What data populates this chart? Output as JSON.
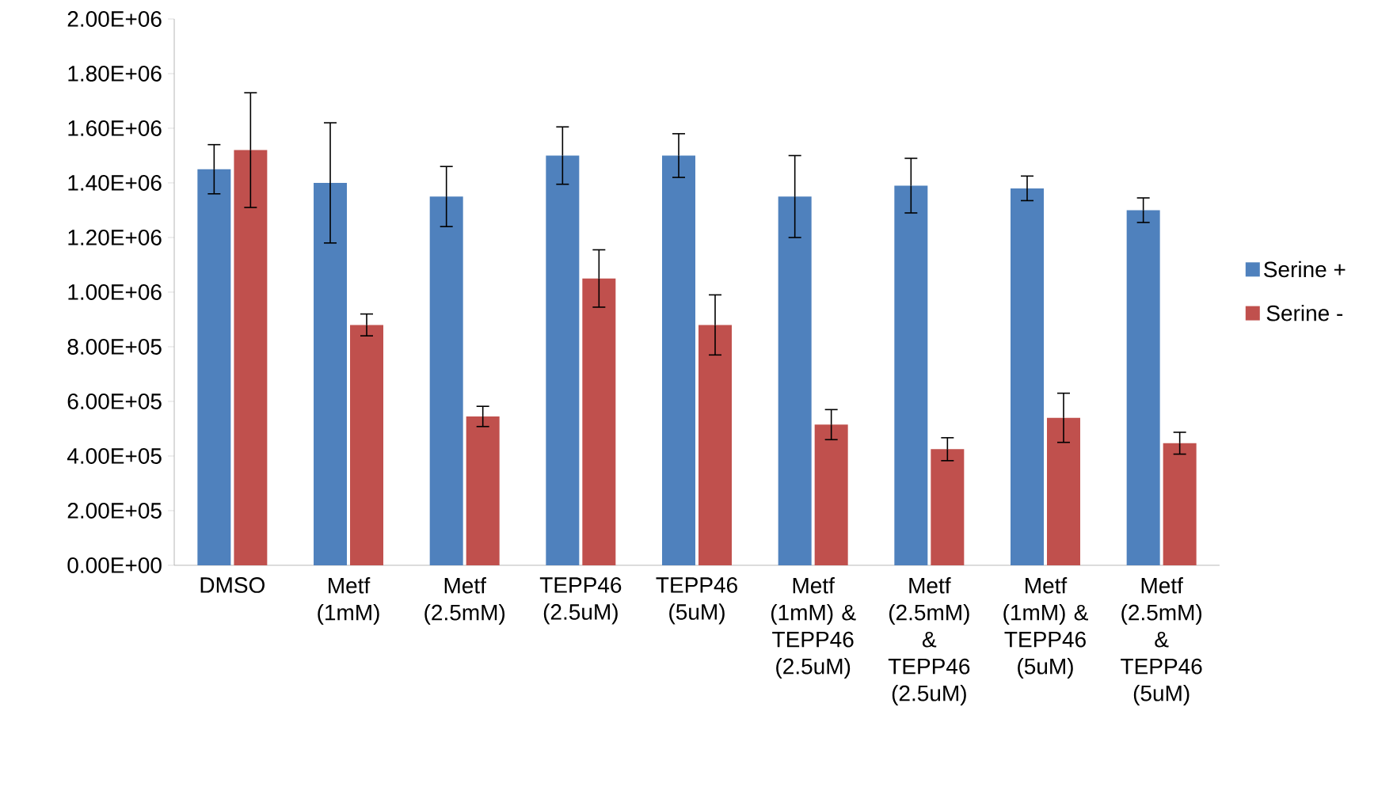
{
  "chart_data": {
    "type": "bar",
    "categories": [
      "DMSO",
      "Metf (1mM)",
      "Metf (2.5mM)",
      "TEPP46 (2.5uM)",
      "TEPP46 (5uM)",
      "Metf (1mM) & TEPP46 (2.5uM)",
      "Metf (2.5mM) & TEPP46 (2.5uM)",
      "Metf (1mM) & TEPP46 (5uM)",
      "Metf (2.5mM) & TEPP46 (5uM)"
    ],
    "series": [
      {
        "name": "Serine +",
        "color": "#4f81bd",
        "values": [
          1450000,
          1400000,
          1350000,
          1500000,
          1500000,
          1350000,
          1390000,
          1380000,
          1300000
        ],
        "errors": [
          90000,
          220000,
          110000,
          105000,
          80000,
          150000,
          100000,
          45000,
          45000
        ]
      },
      {
        "name": "Serine -",
        "color": "#c0504d",
        "values": [
          1520000,
          880000,
          545000,
          1050000,
          880000,
          515000,
          425000,
          540000,
          447000
        ],
        "errors": [
          210000,
          40000,
          37000,
          105000,
          110000,
          55000,
          42000,
          90000,
          40000
        ]
      }
    ],
    "ylim": [
      0,
      2000000
    ],
    "yticks": [
      {
        "value": 0,
        "label": "0.00E+00"
      },
      {
        "value": 200000,
        "label": "2.00E+05"
      },
      {
        "value": 400000,
        "label": "4.00E+05"
      },
      {
        "value": 600000,
        "label": "6.00E+05"
      },
      {
        "value": 800000,
        "label": "8.00E+05"
      },
      {
        "value": 1000000,
        "label": "1.00E+06"
      },
      {
        "value": 1200000,
        "label": "1.20E+06"
      },
      {
        "value": 1400000,
        "label": "1.40E+06"
      },
      {
        "value": 1600000,
        "label": "1.60E+06"
      },
      {
        "value": 1800000,
        "label": "1.80E+06"
      },
      {
        "value": 2000000,
        "label": "2.00E+06"
      }
    ],
    "legend": "right",
    "grid": false
  }
}
